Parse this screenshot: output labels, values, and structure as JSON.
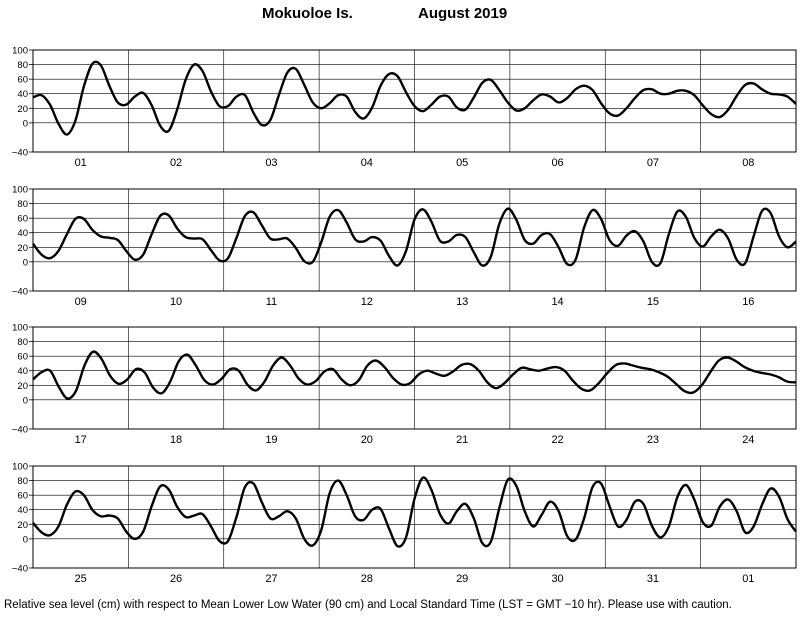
{
  "header": {
    "location": "Mokuoloe Is.",
    "period": "August   2019"
  },
  "footnote": "Relative sea level (cm) with respect to Mean Lower Low Water (90 cm) and Local Standard Time (LST = GMT −10 hr). Please use with caution.",
  "chart_data": [
    {
      "type": "line",
      "title": "",
      "ylabel": "",
      "ylim": [
        -40,
        100
      ],
      "y_ticks": [
        "100",
        "80",
        "60",
        "40",
        "20",
        "0",
        "−40"
      ],
      "y_tick_values": [
        100,
        80,
        60,
        40,
        20,
        0,
        -40
      ],
      "grid": true,
      "day_labels": [
        "01",
        "02",
        "03",
        "04",
        "05",
        "06",
        "07",
        "08"
      ],
      "series": [
        {
          "values": [
            35,
            38,
            25,
            -1,
            -16,
            3,
            50,
            81,
            79,
            51,
            28,
            25,
            36,
            41,
            24,
            -4,
            -11,
            18,
            59,
            80,
            71,
            43,
            23,
            23,
            36,
            38,
            14,
            -3,
            4,
            38,
            69,
            74,
            52,
            28,
            20,
            27,
            38,
            36,
            15,
            6,
            21,
            51,
            67,
            64,
            42,
            23,
            16,
            25,
            36,
            36,
            21,
            18,
            35,
            55,
            59,
            45,
            28,
            17,
            20,
            31,
            39,
            36,
            28,
            34,
            46,
            51,
            45,
            27,
            13,
            10,
            20,
            34,
            45,
            46,
            40,
            40,
            44,
            44,
            38,
            24,
            12,
            8,
            18,
            37,
            52,
            54,
            46,
            40,
            39,
            36,
            26
          ]
        }
      ]
    },
    {
      "type": "line",
      "title": "",
      "ylabel": "",
      "ylim": [
        -40,
        100
      ],
      "y_ticks": [
        "100",
        "80",
        "60",
        "40",
        "20",
        "0",
        "−40"
      ],
      "y_tick_values": [
        100,
        80,
        60,
        40,
        20,
        0,
        -40
      ],
      "grid": true,
      "day_labels": [
        "09",
        "10",
        "11",
        "12",
        "13",
        "14",
        "15",
        "16"
      ],
      "series": [
        {
          "values": [
            25,
            10,
            5,
            15,
            38,
            59,
            59,
            44,
            35,
            33,
            30,
            15,
            3,
            10,
            38,
            63,
            64,
            46,
            34,
            32,
            31,
            16,
            2,
            5,
            33,
            63,
            68,
            50,
            32,
            31,
            32,
            19,
            1,
            0,
            27,
            62,
            71,
            54,
            31,
            28,
            34,
            29,
            8,
            -5,
            15,
            58,
            72,
            55,
            29,
            28,
            37,
            34,
            13,
            -5,
            7,
            52,
            73,
            58,
            30,
            25,
            37,
            38,
            20,
            -3,
            3,
            47,
            71,
            59,
            30,
            22,
            36,
            42,
            28,
            0,
            -2,
            38,
            69,
            62,
            33,
            21,
            35,
            44,
            32,
            3,
            -2,
            35,
            70,
            67,
            35,
            20,
            28
          ]
        }
      ]
    },
    {
      "type": "line",
      "title": "",
      "ylabel": "",
      "ylim": [
        -40,
        100
      ],
      "y_ticks": [
        "100",
        "80",
        "60",
        "40",
        "20",
        "0",
        "−40"
      ],
      "y_tick_values": [
        100,
        80,
        60,
        40,
        20,
        0,
        -40
      ],
      "grid": true,
      "day_labels": [
        "17",
        "18",
        "19",
        "20",
        "21",
        "22",
        "23",
        "24"
      ],
      "series": [
        {
          "values": [
            28,
            38,
            40,
            18,
            2,
            12,
            47,
            66,
            56,
            33,
            22,
            28,
            42,
            38,
            17,
            9,
            25,
            53,
            62,
            47,
            27,
            21,
            29,
            42,
            40,
            21,
            13,
            25,
            47,
            58,
            47,
            29,
            21,
            26,
            39,
            42,
            28,
            20,
            27,
            47,
            54,
            45,
            30,
            21,
            23,
            35,
            40,
            36,
            33,
            39,
            48,
            49,
            40,
            24,
            16,
            23,
            35,
            44,
            42,
            40,
            43,
            45,
            40,
            26,
            15,
            13,
            23,
            37,
            48,
            50,
            47,
            44,
            42,
            38,
            32,
            22,
            12,
            10,
            20,
            38,
            54,
            58,
            53,
            45,
            40,
            37,
            35,
            31,
            25,
            24
          ]
        }
      ]
    },
    {
      "type": "line",
      "title": "",
      "ylabel": "",
      "ylim": [
        -40,
        100
      ],
      "y_ticks": [
        "100",
        "80",
        "60",
        "40",
        "20",
        "0",
        "−40"
      ],
      "y_tick_values": [
        100,
        80,
        60,
        40,
        20,
        0,
        -40
      ],
      "grid": true,
      "day_labels": [
        "25",
        "26",
        "27",
        "28",
        "29",
        "30",
        "31",
        "01"
      ],
      "series": [
        {
          "values": [
            22,
            9,
            5,
            17,
            47,
            65,
            60,
            40,
            31,
            32,
            28,
            10,
            0,
            10,
            45,
            72,
            68,
            44,
            30,
            32,
            34,
            17,
            -3,
            -3,
            30,
            71,
            76,
            50,
            28,
            31,
            38,
            28,
            0,
            -9,
            12,
            63,
            80,
            60,
            31,
            26,
            40,
            41,
            14,
            -10,
            2,
            55,
            84,
            67,
            34,
            21,
            38,
            48,
            28,
            -6,
            -4,
            42,
            81,
            73,
            38,
            17,
            33,
            51,
            38,
            4,
            -1,
            28,
            71,
            76,
            45,
            17,
            26,
            51,
            48,
            18,
            2,
            17,
            57,
            74,
            54,
            23,
            18,
            44,
            54,
            38,
            9,
            17,
            47,
            69,
            58,
            27,
            10
          ]
        }
      ]
    }
  ]
}
